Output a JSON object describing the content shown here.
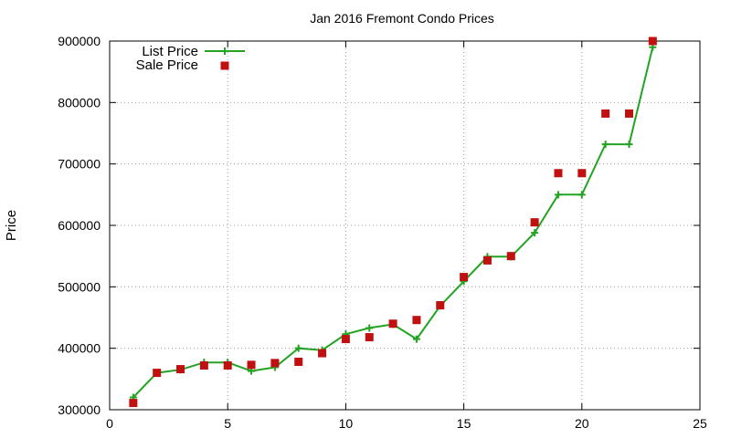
{
  "chart_data": {
    "type": "line",
    "title": "Jan 2016 Fremont Condo Prices",
    "xlabel": "",
    "ylabel": "Price",
    "xlim": [
      0,
      25
    ],
    "ylim": [
      300000,
      900000
    ],
    "xticks": [
      0,
      5,
      10,
      15,
      20,
      25
    ],
    "yticks": [
      300000,
      400000,
      500000,
      600000,
      700000,
      800000,
      900000
    ],
    "grid": true,
    "legend_position": "top-left",
    "series": [
      {
        "name": "List Price",
        "style": "line+cross",
        "color": "#22a322",
        "points": [
          [
            1,
            320000
          ],
          [
            2,
            360000
          ],
          [
            3,
            365000
          ],
          [
            4,
            377000
          ],
          [
            5,
            377000
          ],
          [
            6,
            363000
          ],
          [
            7,
            369000
          ],
          [
            8,
            400000
          ],
          [
            9,
            397000
          ],
          [
            10,
            423000
          ],
          [
            11,
            433000
          ],
          [
            12,
            439000
          ],
          [
            13,
            415000
          ],
          [
            14,
            469000
          ],
          [
            15,
            509000
          ],
          [
            16,
            549000
          ],
          [
            17,
            549000
          ],
          [
            18,
            588000
          ],
          [
            19,
            650000
          ],
          [
            20,
            650000
          ],
          [
            21,
            732000
          ],
          [
            22,
            732000
          ],
          [
            23,
            890000
          ]
        ]
      },
      {
        "name": "Sale Price",
        "style": "square",
        "color": "#c01010",
        "points": [
          [
            1,
            311000
          ],
          [
            2,
            360000
          ],
          [
            3,
            366000
          ],
          [
            4,
            372000
          ],
          [
            5,
            372000
          ],
          [
            6,
            373000
          ],
          [
            7,
            376000
          ],
          [
            8,
            378000
          ],
          [
            9,
            392000
          ],
          [
            10,
            415000
          ],
          [
            11,
            418000
          ],
          [
            12,
            440000
          ],
          [
            13,
            446000
          ],
          [
            14,
            470000
          ],
          [
            15,
            516000
          ],
          [
            16,
            543000
          ],
          [
            17,
            550000
          ],
          [
            18,
            605000
          ],
          [
            19,
            685000
          ],
          [
            20,
            685000
          ],
          [
            21,
            782000
          ],
          [
            22,
            782000
          ],
          [
            23,
            900000
          ]
        ]
      }
    ]
  }
}
